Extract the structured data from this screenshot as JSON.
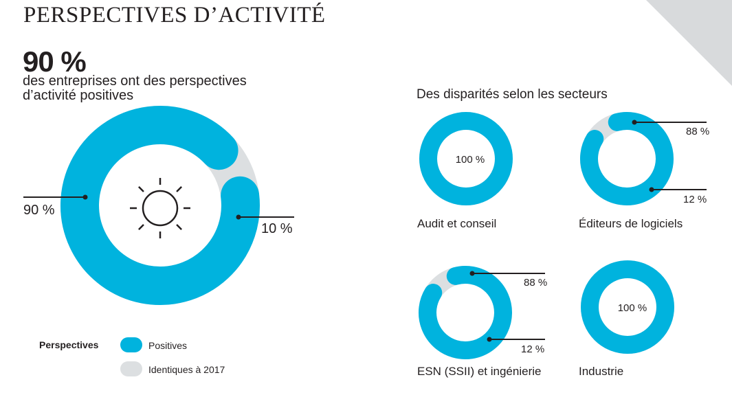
{
  "header": {
    "title": "PERSPECTIVES D’ACTIVITÉ",
    "big_number": "90 %",
    "subtitle_line1": "des entreprises ont des perspectives",
    "subtitle_line2": "d’activité positives"
  },
  "colors": {
    "positive": "#00b3de",
    "identical": "#dcdfe1",
    "line": "#231f20",
    "corner": "#d8dadc"
  },
  "main_icon": "sun-icon",
  "sectors_title": "Des disparités selon les secteurs",
  "legend": {
    "title": "Perspectives",
    "items": [
      {
        "label": "Positives",
        "color": "#00b3de"
      },
      {
        "label": "Identiques à 2017",
        "color": "#dcdfe1"
      }
    ]
  },
  "chart_data": [
    {
      "type": "pie",
      "title": "",
      "categories": [
        "Positives",
        "Identiques à 2017"
      ],
      "values": [
        90,
        10
      ],
      "labels": [
        "90 %",
        "10 %"
      ]
    },
    {
      "type": "pie",
      "title": "Audit et conseil",
      "categories": [
        "Positives",
        "Identiques à 2017"
      ],
      "values": [
        100,
        0
      ],
      "labels": [
        "100 %"
      ]
    },
    {
      "type": "pie",
      "title": "Éditeurs de logiciels",
      "categories": [
        "Positives",
        "Identiques à 2017"
      ],
      "values": [
        88,
        12
      ],
      "labels": [
        "88 %",
        "12 %"
      ]
    },
    {
      "type": "pie",
      "title": "ESN (SSII) et ingénierie",
      "categories": [
        "Positives",
        "Identiques à 2017"
      ],
      "values": [
        88,
        12
      ],
      "labels": [
        "88 %",
        "12 %"
      ]
    },
    {
      "type": "pie",
      "title": "Industrie",
      "categories": [
        "Positives",
        "Identiques à 2017"
      ],
      "values": [
        100,
        0
      ],
      "labels": [
        "100 %"
      ]
    }
  ]
}
